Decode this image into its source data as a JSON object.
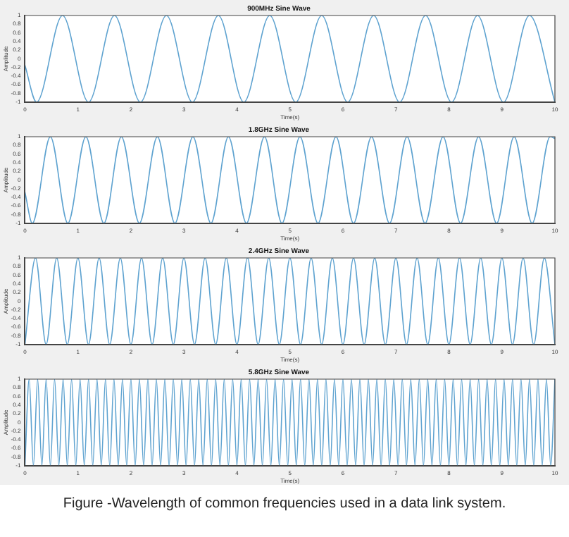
{
  "chart_data": [
    {
      "type": "line",
      "title": "900MHz Sine Wave",
      "xlabel": "Time(s)",
      "ylabel": "Amplitude",
      "xlim": [
        0,
        10
      ],
      "xticks": [
        0,
        1,
        2,
        3,
        4,
        5,
        6,
        7,
        8,
        9,
        10
      ],
      "ylim": [
        -1,
        1
      ],
      "yticks": [
        -1,
        -0.8,
        -0.6,
        -0.4,
        -0.2,
        0,
        0.2,
        0.4,
        0.6,
        0.8,
        1
      ],
      "grid": false,
      "legend": false,
      "marker": "none",
      "series": [
        {
          "color": "#5fa3d0",
          "x": [
            0,
            0.22,
            0.71,
            1.2,
            1.69,
            2.18,
            2.67,
            3.16,
            3.65,
            4.13,
            4.62,
            5.11,
            5.6,
            6.09,
            6.58,
            7.07,
            7.56,
            8.05,
            8.54,
            9.03,
            9.52,
            10
          ],
          "values": [
            -0.15,
            -1,
            1,
            -1,
            1,
            -1,
            1,
            -1,
            1,
            -1,
            1,
            -1,
            1,
            -1,
            1,
            -1,
            1,
            -1,
            1,
            -1,
            1,
            -1
          ]
        }
      ]
    },
    {
      "type": "line",
      "title": "1.8GHz Sine Wave",
      "xlabel": "Time(s)",
      "ylabel": "Amplitude",
      "xlim": [
        0,
        10
      ],
      "xticks": [
        0,
        1,
        2,
        3,
        4,
        5,
        6,
        7,
        8,
        9,
        10
      ],
      "ylim": [
        -1,
        1
      ],
      "yticks": [
        -1,
        -0.8,
        -0.6,
        -0.4,
        -0.2,
        0,
        0.2,
        0.4,
        0.6,
        0.8,
        1
      ],
      "grid": false,
      "legend": false,
      "marker": "none",
      "series": [
        {
          "color": "#5fa3d0",
          "x": [
            0,
            0.14,
            0.48,
            0.81,
            1.15,
            1.49,
            1.82,
            2.16,
            2.5,
            2.83,
            3.17,
            3.51,
            3.84,
            4.18,
            4.52,
            4.85,
            5.19,
            5.53,
            5.87,
            6.2,
            6.54,
            6.88,
            7.21,
            7.55,
            7.89,
            8.22,
            8.56,
            8.9,
            9.23,
            9.57,
            9.91,
            10
          ],
          "values": [
            -0.28,
            -1,
            1,
            -1,
            1,
            -1,
            1,
            -1,
            1,
            -1,
            1,
            -1,
            1,
            -1,
            1,
            -1,
            1,
            -1,
            1,
            -1,
            1,
            -1,
            1,
            -1,
            1,
            -1,
            1,
            -1,
            1,
            -1,
            1,
            0.96
          ]
        }
      ]
    },
    {
      "type": "line",
      "title": "2.4GHz Sine Wave",
      "xlabel": "Time(s)",
      "ylabel": "Amplitude",
      "xlim": [
        0,
        10
      ],
      "xticks": [
        0,
        1,
        2,
        3,
        4,
        5,
        6,
        7,
        8,
        9,
        10
      ],
      "ylim": [
        -1,
        1
      ],
      "yticks": [
        -1,
        -0.8,
        -0.6,
        -0.4,
        -0.2,
        0,
        0.2,
        0.4,
        0.6,
        0.8,
        1
      ],
      "grid": false,
      "legend": false,
      "marker": "none",
      "series": [
        {
          "color": "#5fa3d0",
          "x": [
            0,
            0.2,
            0.4,
            0.6,
            0.8,
            1,
            1.2,
            1.4,
            1.6,
            1.8,
            2,
            2.2,
            2.4,
            2.6,
            2.8,
            3,
            3.2,
            3.4,
            3.6,
            3.8,
            4,
            4.2,
            4.4,
            4.6,
            4.8,
            5,
            5.2,
            5.4,
            5.6,
            5.8,
            6,
            6.2,
            6.4,
            6.6,
            6.8,
            7,
            7.2,
            7.4,
            7.6,
            7.8,
            8,
            8.2,
            8.4,
            8.6,
            8.8,
            9,
            9.2,
            9.4,
            9.6,
            9.8,
            10
          ],
          "values": [
            -1,
            1,
            -1,
            1,
            -1,
            1,
            -1,
            1,
            -1,
            1,
            -1,
            1,
            -1,
            1,
            -1,
            1,
            -1,
            1,
            -1,
            1,
            -1,
            1,
            -1,
            1,
            -1,
            1,
            -1,
            1,
            -1,
            1,
            -1,
            1,
            -1,
            1,
            -1,
            1,
            -1,
            1,
            -1,
            1,
            -1,
            1,
            -1,
            1,
            -1,
            1,
            -1,
            1,
            -1,
            1,
            -1
          ]
        }
      ]
    },
    {
      "type": "line",
      "title": "5.8GHz Sine Wave",
      "xlabel": "Time(s)",
      "ylabel": "Amplitude",
      "xlim": [
        0,
        10
      ],
      "xticks": [
        0,
        1,
        2,
        3,
        4,
        5,
        6,
        7,
        8,
        9,
        10
      ],
      "ylim": [
        -1,
        1
      ],
      "yticks": [
        -1,
        -0.8,
        -0.6,
        -0.4,
        -0.2,
        0,
        0.2,
        0.4,
        0.6,
        0.8,
        1
      ],
      "grid": false,
      "legend": false,
      "marker": "none",
      "annotations": [
        "Figure -Wavelength of common frequencies used in a data link system."
      ],
      "series": [
        {
          "color": "#5fa3d0",
          "x": [
            0,
            0.08,
            0.16,
            0.24,
            0.32,
            0.4,
            0.48,
            0.56,
            0.64,
            0.72,
            0.8,
            0.88,
            0.96,
            1.04,
            1.12,
            1.2,
            1.28,
            1.36,
            1.44,
            1.52,
            1.6,
            1.68,
            1.76,
            1.84,
            1.92,
            2,
            2.08,
            2.16,
            2.24,
            2.32,
            2.4,
            2.48,
            2.56,
            2.64,
            2.72,
            2.8,
            2.88,
            2.96,
            3.04,
            3.12,
            3.2,
            3.28,
            3.36,
            3.44,
            3.52,
            3.6,
            3.68,
            3.76,
            3.84,
            3.92,
            4,
            4.08,
            4.16,
            4.24,
            4.32,
            4.4,
            4.48,
            4.56,
            4.64,
            4.72,
            4.8,
            4.88,
            4.96,
            5.04,
            5.12,
            5.2,
            5.28,
            5.36,
            5.44,
            5.52,
            5.6,
            5.68,
            5.76,
            5.84,
            5.92,
            6,
            6.08,
            6.16,
            6.24,
            6.32,
            6.4,
            6.48,
            6.56,
            6.64,
            6.72,
            6.8,
            6.88,
            6.96,
            7.04,
            7.12,
            7.2,
            7.28,
            7.36,
            7.44,
            7.52,
            7.6,
            7.68,
            7.76,
            7.84,
            7.92,
            8,
            8.08,
            8.16,
            8.24,
            8.32,
            8.4,
            8.48,
            8.56,
            8.64,
            8.72,
            8.8,
            8.88,
            8.96,
            9.04,
            9.12,
            9.2,
            9.28,
            9.36,
            9.44,
            9.52,
            9.6,
            9.68,
            9.76,
            9.84,
            9.92,
            10
          ],
          "values": [
            -1,
            1,
            -1,
            1,
            -1,
            1,
            -1,
            1,
            -1,
            1,
            -1,
            1,
            -1,
            1,
            -1,
            1,
            -1,
            1,
            -1,
            1,
            -1,
            1,
            -1,
            1,
            -1,
            1,
            -1,
            1,
            -1,
            1,
            -1,
            1,
            -1,
            1,
            -1,
            1,
            -1,
            1,
            -1,
            1,
            -1,
            1,
            -1,
            1,
            -1,
            1,
            -1,
            1,
            -1,
            1,
            -1,
            1,
            -1,
            1,
            -1,
            1,
            -1,
            1,
            -1,
            1,
            -1,
            1,
            -1,
            1,
            -1,
            1,
            -1,
            1,
            -1,
            1,
            -1,
            1,
            -1,
            1,
            -1,
            1,
            -1,
            1,
            -1,
            1,
            -1,
            1,
            -1,
            1,
            -1,
            1,
            -1,
            1,
            -1,
            1,
            -1,
            1,
            -1,
            1,
            -1,
            1,
            -1,
            1,
            -1,
            1,
            -1,
            1,
            -1,
            1,
            -1,
            1,
            -1,
            1,
            -1,
            1,
            -1,
            1,
            -1,
            1,
            -1,
            1,
            -1,
            1,
            -1,
            1,
            -1,
            1,
            -1,
            1,
            -1,
            1
          ]
        }
      ]
    }
  ]
}
